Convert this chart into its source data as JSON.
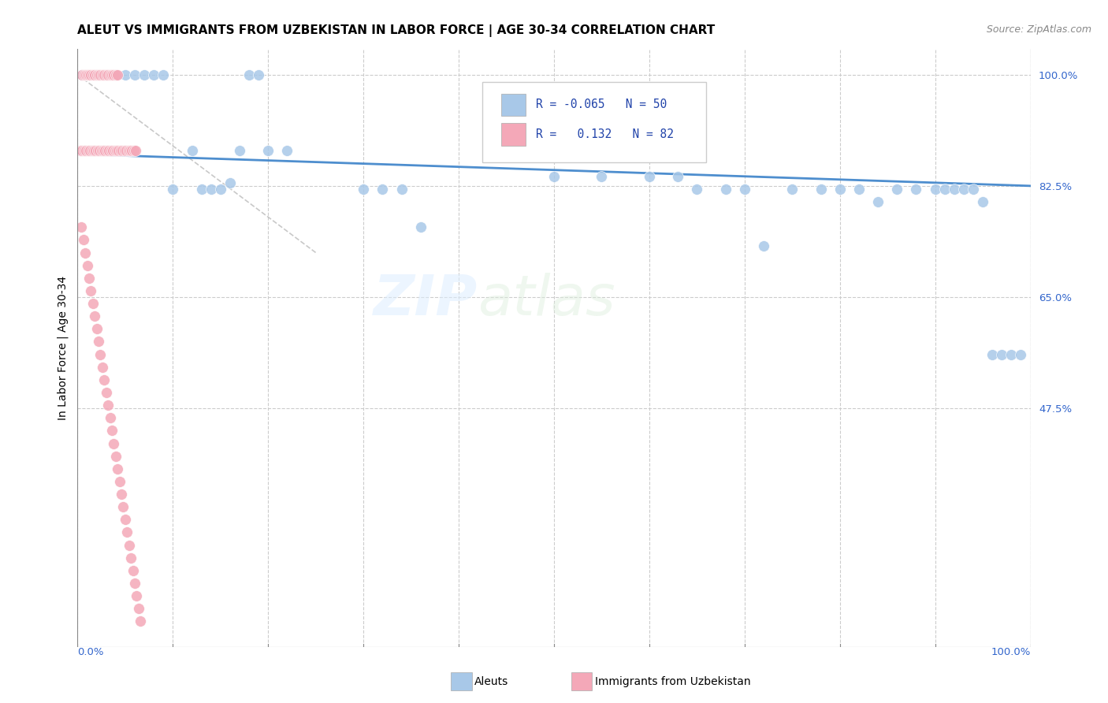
{
  "title": "ALEUT VS IMMIGRANTS FROM UZBEKISTAN IN LABOR FORCE | AGE 30-34 CORRELATION CHART",
  "source": "Source: ZipAtlas.com",
  "ylabel": "In Labor Force | Age 30-34",
  "legend_R_blue": "-0.065",
  "legend_N_blue": "50",
  "legend_R_pink": "0.132",
  "legend_N_pink": "82",
  "blue_color": "#a8c8e8",
  "pink_color": "#f4a8b8",
  "trendline_blue_color": "#4488cc",
  "trendline_pink_color": "#bbbbbb",
  "aleuts_x": [
    0.005,
    0.01,
    0.02,
    0.03,
    0.04,
    0.05,
    0.06,
    0.07,
    0.08,
    0.09,
    0.12,
    0.16,
    0.17,
    0.18,
    0.19,
    0.2,
    0.22,
    0.3,
    0.32,
    0.34,
    0.36,
    0.5,
    0.55,
    0.6,
    0.63,
    0.65,
    0.68,
    0.7,
    0.72,
    0.75,
    0.78,
    0.8,
    0.82,
    0.84,
    0.86,
    0.88,
    0.9,
    0.91,
    0.92,
    0.93,
    0.94,
    0.95,
    0.96,
    0.97,
    0.98,
    0.99,
    0.1,
    0.13,
    0.14,
    0.15
  ],
  "aleuts_y": [
    1.0,
    1.0,
    1.0,
    1.0,
    1.0,
    1.0,
    1.0,
    1.0,
    1.0,
    1.0,
    0.88,
    0.83,
    0.88,
    1.0,
    1.0,
    0.88,
    0.88,
    0.82,
    0.82,
    0.82,
    0.76,
    0.84,
    0.84,
    0.84,
    0.84,
    0.82,
    0.82,
    0.82,
    0.73,
    0.82,
    0.82,
    0.82,
    0.82,
    0.8,
    0.82,
    0.82,
    0.82,
    0.82,
    0.82,
    0.82,
    0.82,
    0.8,
    0.56,
    0.56,
    0.56,
    0.56,
    0.82,
    0.82,
    0.82,
    0.82
  ],
  "uzbek_x": [
    0.005,
    0.007,
    0.009,
    0.01,
    0.012,
    0.014,
    0.016,
    0.018,
    0.02,
    0.022,
    0.024,
    0.026,
    0.028,
    0.03,
    0.032,
    0.034,
    0.036,
    0.038,
    0.04,
    0.042,
    0.003,
    0.005,
    0.007,
    0.009,
    0.011,
    0.013,
    0.015,
    0.017,
    0.019,
    0.021,
    0.023,
    0.025,
    0.027,
    0.029,
    0.031,
    0.033,
    0.035,
    0.037,
    0.039,
    0.041,
    0.043,
    0.045,
    0.047,
    0.049,
    0.051,
    0.053,
    0.055,
    0.057,
    0.059,
    0.061,
    0.004,
    0.006,
    0.008,
    0.01,
    0.012,
    0.014,
    0.016,
    0.018,
    0.02,
    0.022,
    0.024,
    0.026,
    0.028,
    0.03,
    0.032,
    0.034,
    0.036,
    0.038,
    0.04,
    0.042,
    0.044,
    0.046,
    0.048,
    0.05,
    0.052,
    0.054,
    0.056,
    0.058,
    0.06,
    0.062,
    0.064,
    0.066
  ],
  "uzbek_y": [
    1.0,
    1.0,
    1.0,
    1.0,
    1.0,
    1.0,
    1.0,
    1.0,
    1.0,
    1.0,
    1.0,
    1.0,
    1.0,
    1.0,
    1.0,
    1.0,
    1.0,
    1.0,
    1.0,
    1.0,
    0.88,
    0.88,
    0.88,
    0.88,
    0.88,
    0.88,
    0.88,
    0.88,
    0.88,
    0.88,
    0.88,
    0.88,
    0.88,
    0.88,
    0.88,
    0.88,
    0.88,
    0.88,
    0.88,
    0.88,
    0.88,
    0.88,
    0.88,
    0.88,
    0.88,
    0.88,
    0.88,
    0.88,
    0.88,
    0.88,
    0.76,
    0.74,
    0.72,
    0.7,
    0.68,
    0.66,
    0.64,
    0.62,
    0.6,
    0.58,
    0.56,
    0.54,
    0.52,
    0.5,
    0.48,
    0.46,
    0.44,
    0.42,
    0.4,
    0.38,
    0.36,
    0.34,
    0.32,
    0.3,
    0.28,
    0.26,
    0.24,
    0.22,
    0.2,
    0.18,
    0.16,
    0.14
  ],
  "xmin": 0.0,
  "xmax": 1.0,
  "ymin": 0.1,
  "ymax": 1.04,
  "ytick_vals": [
    0.475,
    0.65,
    0.825,
    1.0
  ],
  "ytick_labels": [
    "47.5%",
    "65.0%",
    "82.5%",
    "100.0%"
  ],
  "grid_yticks": [
    0.475,
    0.65,
    0.825,
    1.0
  ],
  "grid_xticks": [
    0.0,
    0.1,
    0.2,
    0.3,
    0.4,
    0.5,
    0.6,
    0.7,
    0.8,
    0.9,
    1.0
  ]
}
